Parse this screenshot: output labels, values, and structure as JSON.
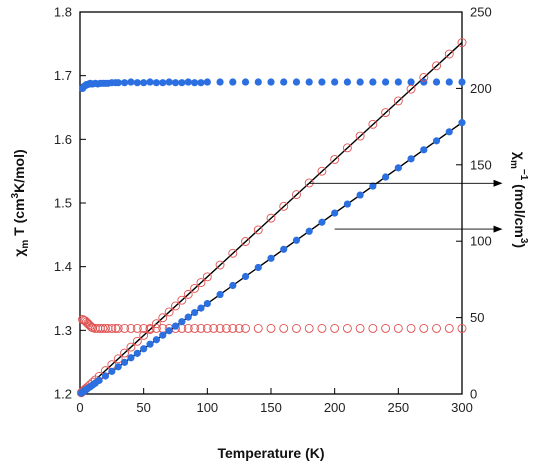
{
  "chart_data": {
    "type": "scatter",
    "xlabel": "Temperature (K)",
    "ylabel_left": {
      "base": "χ",
      "sub": "m",
      "rest": " T  (cm",
      "sup": "3",
      "end": "K/mol)"
    },
    "ylabel_right": {
      "base": "χ",
      "sub": "m",
      "sup": "−1",
      "units_a": " (mol/cm",
      "units_sup": "3",
      "units_b": ")"
    },
    "xlim": [
      0,
      300
    ],
    "ylim_left": [
      1.2,
      1.8
    ],
    "ylim_right": [
      0,
      250
    ],
    "x_ticks": [
      "0",
      "50",
      "100",
      "150",
      "200",
      "250",
      "300"
    ],
    "y_left_ticks": [
      "1.2",
      "1.3",
      "1.4",
      "1.5",
      "1.6",
      "1.7",
      "1.8"
    ],
    "y_right_ticks": [
      "0",
      "50",
      "100",
      "150",
      "200",
      "250"
    ],
    "colors": {
      "red": "#e05050",
      "blue": "#2b6fe0",
      "black": "#000000"
    },
    "series": [
      {
        "marker": "open-circle",
        "color": "red",
        "axis": "left",
        "x": [
          2,
          3,
          4,
          5,
          6,
          7,
          8,
          9,
          10,
          12,
          14,
          16,
          18,
          20,
          22,
          25,
          28,
          30,
          35,
          40,
          45,
          50,
          55,
          60,
          65,
          70,
          75,
          80,
          85,
          90,
          95,
          100,
          105,
          110,
          115,
          120,
          125,
          130,
          140,
          150,
          160,
          170,
          180,
          190,
          200,
          210,
          220,
          230,
          240,
          250,
          260,
          270,
          280,
          290,
          300
        ],
        "y": [
          1.317,
          1.316,
          1.315,
          1.313,
          1.311,
          1.309,
          1.307,
          1.305,
          1.304,
          1.303,
          1.303,
          1.303,
          1.303,
          1.303,
          1.303,
          1.303,
          1.303,
          1.303,
          1.303,
          1.303,
          1.303,
          1.303,
          1.303,
          1.303,
          1.303,
          1.303,
          1.303,
          1.303,
          1.303,
          1.303,
          1.303,
          1.303,
          1.303,
          1.303,
          1.303,
          1.303,
          1.303,
          1.303,
          1.303,
          1.303,
          1.303,
          1.303,
          1.303,
          1.303,
          1.303,
          1.303,
          1.303,
          1.303,
          1.303,
          1.303,
          1.303,
          1.303,
          1.303,
          1.303,
          1.303
        ]
      },
      {
        "marker": "filled-circle",
        "color": "blue",
        "axis": "left",
        "x": [
          2,
          3,
          4,
          5,
          6,
          7,
          8,
          9,
          10,
          12,
          14,
          16,
          18,
          20,
          22,
          25,
          28,
          30,
          35,
          40,
          45,
          50,
          55,
          60,
          65,
          70,
          75,
          80,
          85,
          90,
          95,
          100,
          110,
          120,
          130,
          140,
          150,
          160,
          170,
          180,
          190,
          200,
          210,
          220,
          230,
          240,
          250,
          260,
          270,
          280,
          290,
          300
        ],
        "y": [
          1.68,
          1.683,
          1.684,
          1.686,
          1.686,
          1.687,
          1.688,
          1.687,
          1.687,
          1.688,
          1.687,
          1.688,
          1.688,
          1.688,
          1.688,
          1.689,
          1.689,
          1.689,
          1.689,
          1.69,
          1.689,
          1.689,
          1.69,
          1.689,
          1.689,
          1.69,
          1.689,
          1.689,
          1.69,
          1.689,
          1.689,
          1.69,
          1.69,
          1.69,
          1.69,
          1.69,
          1.69,
          1.69,
          1.69,
          1.69,
          1.69,
          1.69,
          1.69,
          1.69,
          1.69,
          1.69,
          1.69,
          1.69,
          1.69,
          1.69,
          1.69,
          1.69
        ]
      },
      {
        "marker": "open-circle",
        "color": "red",
        "axis": "right",
        "x": [
          1,
          2,
          3,
          4,
          5,
          6,
          8,
          10,
          12,
          15,
          20,
          25,
          30,
          35,
          40,
          45,
          50,
          55,
          60,
          65,
          70,
          75,
          80,
          85,
          90,
          95,
          100,
          110,
          120,
          130,
          140,
          150,
          160,
          170,
          180,
          190,
          200,
          210,
          220,
          230,
          240,
          250,
          260,
          270,
          280,
          290,
          300
        ],
        "y": [
          0.8,
          1.6,
          2.3,
          3.1,
          3.8,
          4.6,
          6.1,
          7.7,
          9.2,
          11.5,
          15.3,
          19.2,
          23,
          26.8,
          30.7,
          34.5,
          38.4,
          42.2,
          46,
          49.9,
          53.7,
          57.6,
          61.4,
          65.2,
          69.1,
          72.9,
          76.7,
          84.4,
          92.1,
          99.8,
          107.4,
          115.1,
          122.8,
          130.5,
          138.1,
          145.8,
          153.5,
          161.1,
          168.8,
          176.5,
          184.2,
          191.8,
          199.5,
          207.2,
          214.8,
          222.5,
          230
        ]
      },
      {
        "marker": "filled-circle",
        "color": "blue",
        "axis": "right",
        "x": [
          1,
          2,
          3,
          4,
          5,
          6,
          8,
          10,
          12,
          15,
          20,
          25,
          30,
          35,
          40,
          45,
          50,
          55,
          60,
          65,
          70,
          75,
          80,
          85,
          90,
          95,
          100,
          110,
          120,
          130,
          140,
          150,
          160,
          170,
          180,
          190,
          200,
          210,
          220,
          230,
          240,
          250,
          260,
          270,
          280,
          290,
          300
        ],
        "y": [
          0.6,
          1.2,
          1.8,
          2.4,
          3,
          3.6,
          4.7,
          5.9,
          7.1,
          8.9,
          11.8,
          14.8,
          17.8,
          20.7,
          23.7,
          26.6,
          29.6,
          32.6,
          35.5,
          38.5,
          41.4,
          44.4,
          47.3,
          50.3,
          53.3,
          56.2,
          59.2,
          65.1,
          71,
          76.9,
          82.8,
          88.8,
          94.7,
          100.6,
          106.5,
          112.4,
          118.4,
          124.3,
          130.2,
          136.1,
          142,
          148,
          153.9,
          159.8,
          165.7,
          171.6,
          177.6
        ]
      }
    ],
    "fit_lines": [
      {
        "axis": "right",
        "x": [
          0,
          300
        ],
        "y": [
          0,
          230
        ]
      },
      {
        "axis": "right",
        "x": [
          0,
          300
        ],
        "y": [
          0,
          177.6
        ]
      }
    ],
    "arrows": [
      {
        "from": [
          180,
          1.531
        ],
        "to": [
          302,
          1.531
        ],
        "axis": "left",
        "direction": "right"
      },
      {
        "from": [
          200,
          1.459
        ],
        "to": [
          302,
          1.459
        ],
        "axis": "left",
        "direction": "right"
      }
    ],
    "grid": false,
    "legend": "none"
  }
}
